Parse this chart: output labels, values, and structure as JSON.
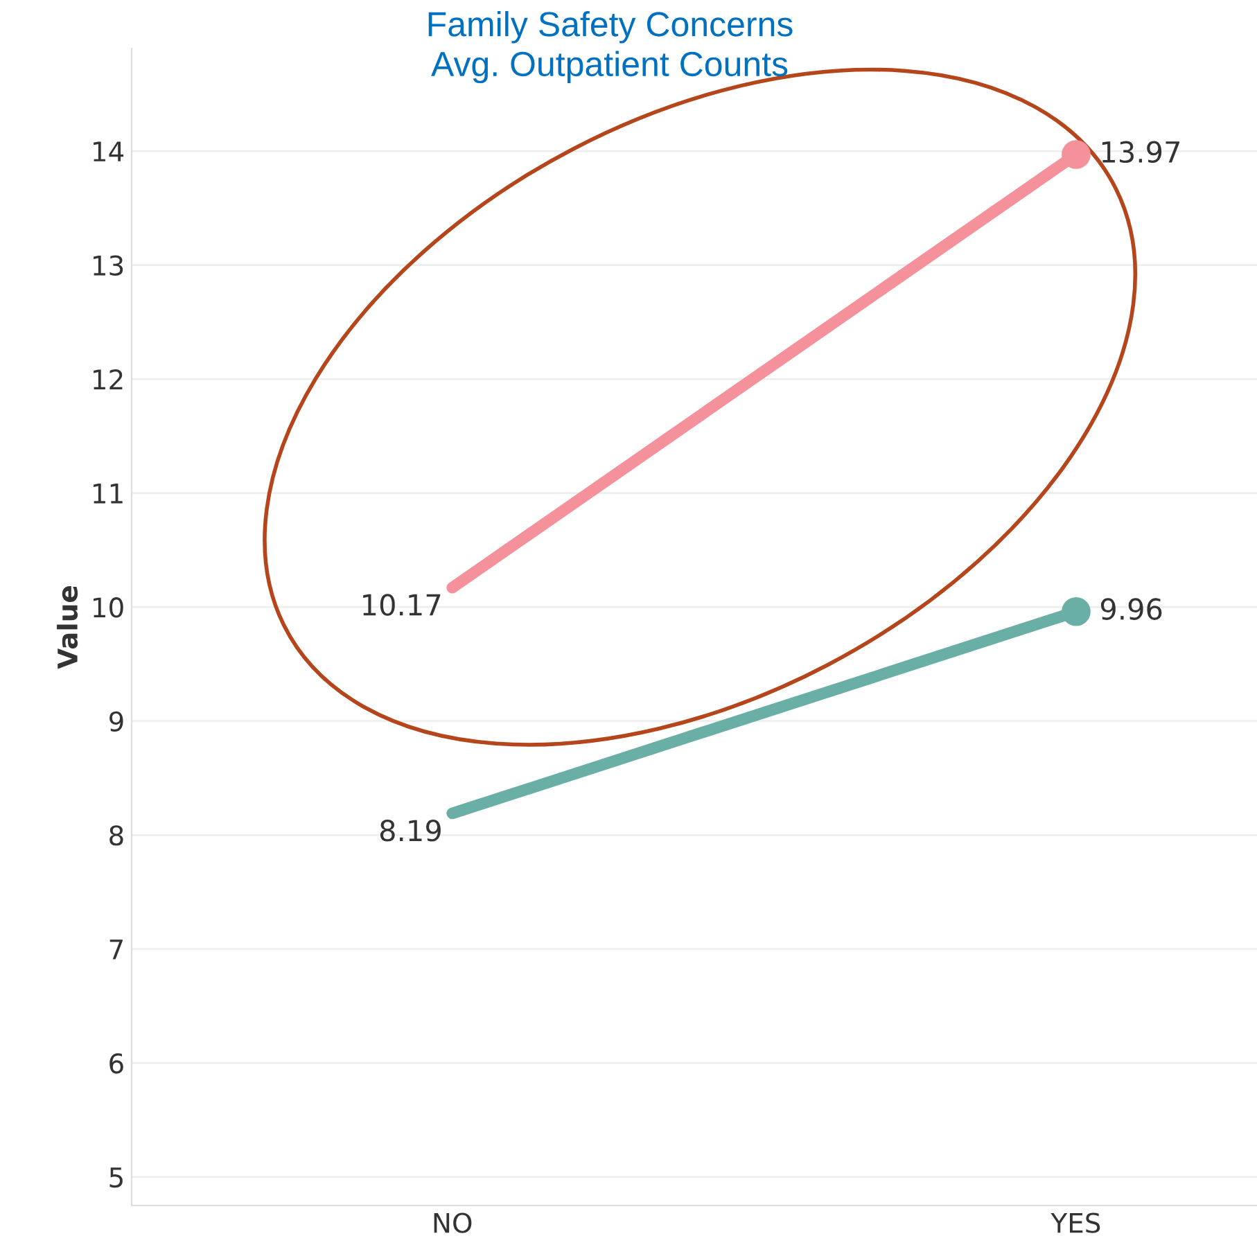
{
  "chart_data": {
    "type": "line",
    "title": "Family Safety Concerns\nAvg. Outpatient Counts",
    "ylabel": "Value",
    "categories": [
      "NO",
      "YES"
    ],
    "series": [
      {
        "color": "#f4919a",
        "values": [
          10.17,
          13.97
        ]
      },
      {
        "color": "#6aafa6",
        "values": [
          8.19,
          9.96
        ]
      }
    ],
    "ylim": [
      4.75,
      14.9
    ],
    "yticks": [
      5,
      6,
      7,
      8,
      9,
      10,
      11,
      12,
      13,
      14
    ],
    "grid": "y",
    "marker": "circle",
    "data_labels": true,
    "legend": false
  }
}
